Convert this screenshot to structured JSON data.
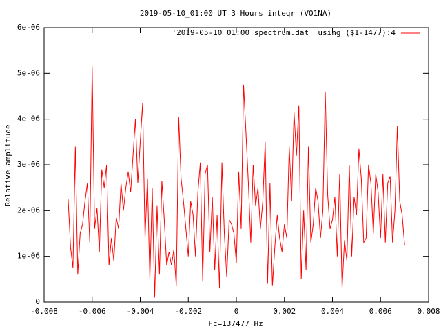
{
  "chart_data": {
    "type": "line",
    "title": "2019-05-10_01:00 UT 3 Hours integr (VO1NA)",
    "xlabel": "Fc=137477 Hz",
    "ylabel": "Relative amplitude",
    "legend": "top-right",
    "x": [
      -0.007,
      -0.0069,
      -0.0068,
      -0.0067,
      -0.0066,
      -0.0065,
      -0.0064,
      -0.0063,
      -0.0062,
      -0.0061,
      -0.006,
      -0.0059,
      -0.0058,
      -0.0057,
      -0.0056,
      -0.0055,
      -0.0054,
      -0.0053,
      -0.0052,
      -0.0051,
      -0.005,
      -0.0049,
      -0.0048,
      -0.0047,
      -0.0046,
      -0.0045,
      -0.0044,
      -0.0043,
      -0.0042,
      -0.0041,
      -0.004,
      -0.0039,
      -0.0038,
      -0.0037,
      -0.0036,
      -0.0035,
      -0.0034,
      -0.0033,
      -0.0032,
      -0.0031,
      -0.003,
      -0.0029,
      -0.0028,
      -0.0027,
      -0.0026,
      -0.0025,
      -0.0024,
      -0.0023,
      -0.0022,
      -0.0021,
      -0.002,
      -0.0019,
      -0.0018,
      -0.0017,
      -0.0016,
      -0.0015,
      -0.0014,
      -0.0013,
      -0.0012,
      -0.0011,
      -0.001,
      -0.0009,
      -0.0008,
      -0.0007,
      -0.0006,
      -0.0005,
      -0.0004,
      -0.0003,
      -0.0002,
      -0.0001,
      0,
      0.0001,
      0.0002,
      0.0003,
      0.0004,
      0.0005,
      0.0006,
      0.0007,
      0.0008,
      0.0009,
      0.001,
      0.0011,
      0.0012,
      0.0013,
      0.0014,
      0.0015,
      0.0016,
      0.0017,
      0.0018,
      0.0019,
      0.002,
      0.0021,
      0.0022,
      0.0023,
      0.0024,
      0.0025,
      0.0026,
      0.0027,
      0.0028,
      0.0029,
      0.003,
      0.0031,
      0.0032,
      0.0033,
      0.0034,
      0.0035,
      0.0036,
      0.0037,
      0.0038,
      0.0039,
      0.004,
      0.0041,
      0.0042,
      0.0043,
      0.0044,
      0.0045,
      0.0046,
      0.0047,
      0.0048,
      0.0049,
      0.005,
      0.0051,
      0.0052,
      0.0053,
      0.0054,
      0.0055,
      0.0056,
      0.0057,
      0.0058,
      0.0059,
      0.006,
      0.0061,
      0.0062,
      0.0063,
      0.0064,
      0.0065,
      0.0066,
      0.0067,
      0.0068,
      0.0069,
      0.007
    ],
    "series": [
      {
        "name": "'2019-05-10_01:00_spectrum.dat' using ($1-1477):4",
        "color": "#ff0000",
        "values": [
          2.25e-06,
          1.2e-06,
          7.5e-07,
          3.4e-06,
          6e-07,
          1.5e-06,
          1.7e-06,
          2.2e-06,
          2.6e-06,
          1.3e-06,
          5.15e-06,
          1.6e-06,
          2.05e-06,
          1.1e-06,
          2.9e-06,
          2.5e-06,
          3e-06,
          8e-07,
          1.4e-06,
          9e-07,
          1.85e-06,
          1.6e-06,
          2.6e-06,
          2e-06,
          2.5e-06,
          2.85e-06,
          2.4e-06,
          3.2e-06,
          4e-06,
          2.6e-06,
          3.5e-06,
          4.35e-06,
          1.4e-06,
          2.7e-06,
          5e-07,
          2.5e-06,
          1e-07,
          2.1e-06,
          6e-07,
          2.65e-06,
          1.8e-06,
          8e-07,
          1.1e-06,
          8e-07,
          1.15e-06,
          3.5e-07,
          4.05e-06,
          2.7e-06,
          2.2e-06,
          1.6e-06,
          1e-06,
          2.2e-06,
          1.9e-06,
          1e-06,
          2.4e-06,
          3.05e-06,
          4.5e-07,
          2.8e-06,
          3e-06,
          1.1e-06,
          2.3e-06,
          7e-07,
          1.9e-06,
          3e-07,
          3.05e-06,
          1.5e-06,
          5.5e-07,
          1.8e-06,
          1.7e-06,
          1.5e-06,
          8.5e-07,
          2.85e-06,
          1.6e-06,
          4.75e-06,
          3.7e-06,
          2.6e-06,
          1.3e-06,
          3e-06,
          2.1e-06,
          2.5e-06,
          1.6e-06,
          2.2e-06,
          3.5e-06,
          4e-07,
          2.6e-06,
          3.5e-07,
          1.2e-06,
          1.9e-06,
          1.4e-06,
          1.1e-06,
          1.7e-06,
          1.4e-06,
          3.4e-06,
          2.2e-06,
          4.15e-06,
          3.2e-06,
          4.3e-06,
          5e-07,
          2e-06,
          7e-07,
          3.4e-06,
          1.3e-06,
          1.7e-06,
          2.5e-06,
          2.2e-06,
          1.4e-06,
          2e-06,
          4.6e-06,
          2.35e-06,
          1.6e-06,
          1.8e-06,
          2.3e-06,
          1e-06,
          2.8e-06,
          3e-07,
          1.35e-06,
          9e-07,
          3e-06,
          1e-06,
          2.3e-06,
          1.9e-06,
          3.35e-06,
          2.7e-06,
          1.3e-06,
          1.4e-06,
          3e-06,
          2.6e-06,
          1.5e-06,
          2.8e-06,
          2.4e-06,
          1.4e-06,
          2.8e-06,
          1.3e-06,
          2.6e-06,
          2.75e-06,
          1.3e-06,
          2e-06,
          3.85e-06,
          2.2e-06,
          1.9e-06,
          1.25e-06
        ]
      }
    ],
    "xlim": [
      -0.008,
      0.008
    ],
    "xticks": [
      -0.008,
      -0.006,
      -0.004,
      -0.002,
      0,
      0.002,
      0.004,
      0.006,
      0.008
    ],
    "ylim": [
      0,
      6e-06
    ],
    "yticks": [
      0,
      {
        "value": 1e-06,
        "label": "1e-06"
      },
      {
        "value": 2e-06,
        "label": "2e-06"
      },
      {
        "value": 3e-06,
        "label": "3e-06"
      },
      {
        "value": 4e-06,
        "label": "4e-06"
      },
      {
        "value": 5e-06,
        "label": "5e-06"
      },
      {
        "value": 6e-06,
        "label": "6e-06"
      }
    ]
  }
}
